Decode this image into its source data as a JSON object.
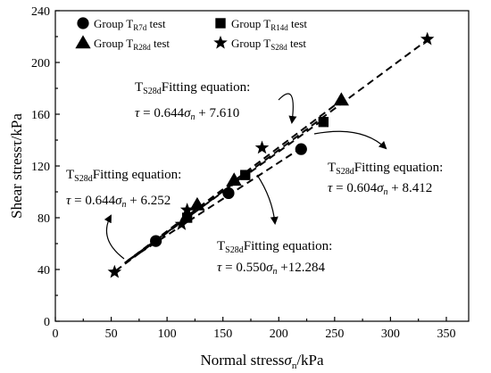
{
  "chart_data": {
    "type": "scatter",
    "xlabel": {
      "main": "Normal stress",
      "symbol": "σ",
      "sub": "n",
      "unit": "/kPa"
    },
    "ylabel": "Shear stressτ/kPa",
    "xlim": [
      0,
      370
    ],
    "ylim": [
      0,
      240
    ],
    "xticks": [
      0,
      50,
      100,
      150,
      200,
      250,
      300,
      350
    ],
    "yticks": [
      0,
      40,
      80,
      120,
      160,
      200,
      240
    ],
    "legend_position": "top-left",
    "series": [
      {
        "name": "Group TR7d test",
        "label_main": "Group T",
        "label_sub": "R7d",
        "label_end": " test",
        "marker": "circle",
        "points": [
          [
            90,
            62
          ],
          [
            155,
            99
          ],
          [
            220,
            133
          ]
        ]
      },
      {
        "name": "Group TR14d test",
        "label_main": "Group T",
        "label_sub": "R14d",
        "label_end": " test",
        "marker": "square",
        "points": [
          [
            118,
            80
          ],
          [
            170,
            113
          ],
          [
            240,
            154
          ]
        ]
      },
      {
        "name": "Group TR28d test",
        "label_main": "Group T",
        "label_sub": "R28d",
        "label_end": " test",
        "marker": "triangle",
        "points": [
          [
            127,
            90
          ],
          [
            160,
            109
          ],
          [
            256,
            171
          ]
        ]
      },
      {
        "name": "Group TS28d test",
        "label_main": "Group T",
        "label_sub": "S28d",
        "label_end": " test",
        "marker": "star",
        "points": [
          [
            53,
            38
          ],
          [
            113,
            75
          ],
          [
            118,
            86
          ],
          [
            185,
            134
          ],
          [
            333,
            218
          ]
        ]
      }
    ],
    "fit_lines": [
      {
        "x": [
          54,
          334
        ],
        "y": [
          39,
          218
        ]
      },
      {
        "x": [
          62,
          258
        ],
        "y": [
          45,
          172
        ]
      },
      {
        "x": [
          65,
          240
        ],
        "y": [
          47,
          156
        ]
      },
      {
        "x": [
          67,
          222
        ],
        "y": [
          48,
          135
        ]
      }
    ],
    "annotations": [
      {
        "title_main": "T",
        "title_sub": "S28d",
        "title_rest": "Fitting equation:",
        "eq_tau": "τ",
        "eq_sigma": "σ",
        "eq_sub": "n",
        "eq_pre": " = 0.644",
        "eq_post": " + 6.252"
      },
      {
        "title_main": "T",
        "title_sub": "S28d",
        "title_rest": "Fitting equation:",
        "eq_tau": "τ",
        "eq_sigma": "σ",
        "eq_sub": "n",
        "eq_pre": " = 0.644",
        "eq_post": " + 7.610"
      },
      {
        "title_main": "T",
        "title_sub": "S28d",
        "title_rest": "Fitting equation:",
        "eq_tau": "τ",
        "eq_sigma": "σ",
        "eq_sub": "n",
        "eq_pre": " = 0.604",
        "eq_post": " + 8.412"
      },
      {
        "title_main": "T",
        "title_sub": "S28d",
        "title_rest": "Fitting equation:",
        "eq_tau": "τ",
        "eq_sigma": "σ",
        "eq_sub": "n",
        "eq_pre": " = 0.550",
        "eq_post": " +12.284"
      }
    ]
  }
}
